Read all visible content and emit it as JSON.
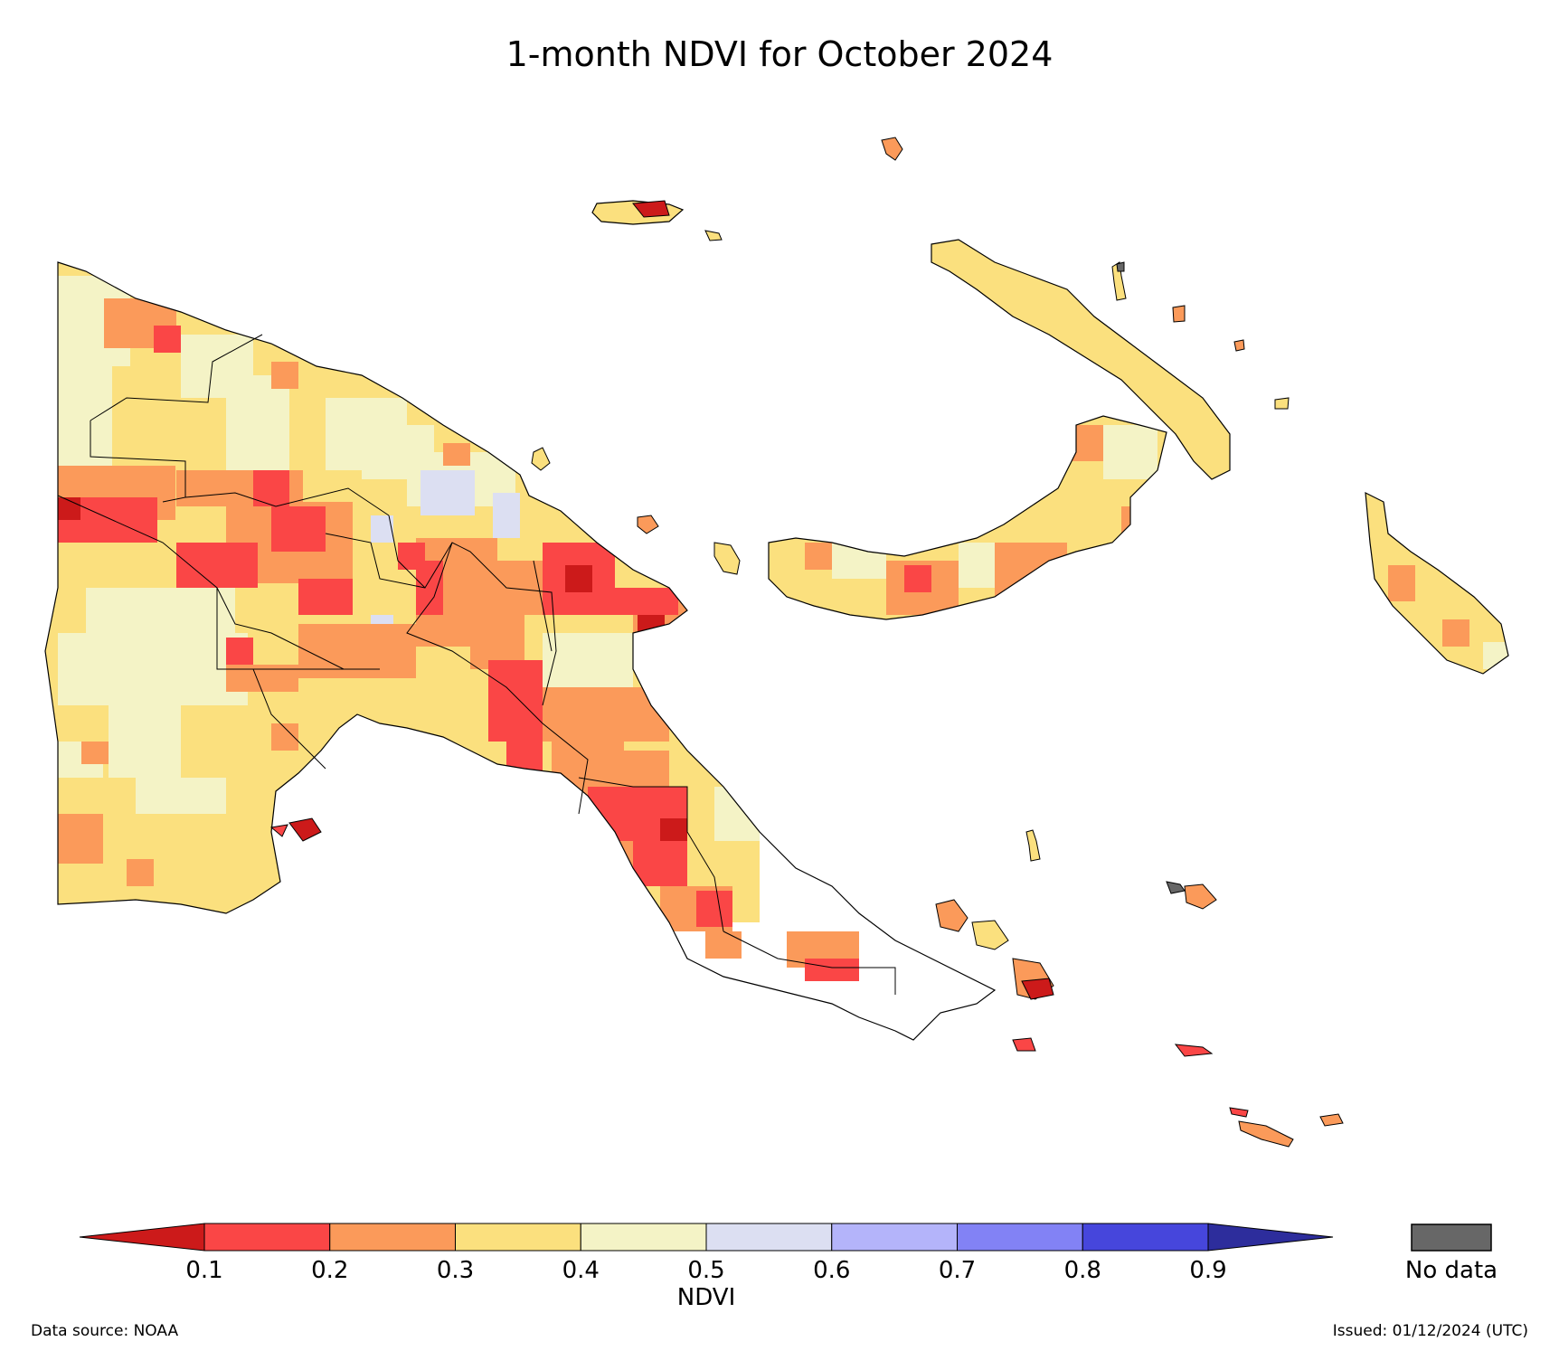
{
  "title": "1-month NDVI for October 2024",
  "footer": {
    "source": "Data source: NOAA",
    "issued": "Issued: 01/12/2024 (UTC)"
  },
  "legend": {
    "label": "NDVI",
    "ticks": [
      "0.1",
      "0.2",
      "0.3",
      "0.4",
      "0.5",
      "0.6",
      "0.7",
      "0.8",
      "0.9"
    ],
    "under_color": "#cc1a1a",
    "bin_colors": [
      "#fa4646",
      "#fb9a5a",
      "#fbe07e",
      "#f4f3c6",
      "#dcdff2",
      "#b4b4fa",
      "#8282f5",
      "#4646dc"
    ],
    "over_color": "#2d2d9c",
    "no_data_label": "No data",
    "no_data_color": "#676767"
  },
  "map": {
    "region": "Papua New Guinea",
    "legend_placement": "bottom"
  }
}
